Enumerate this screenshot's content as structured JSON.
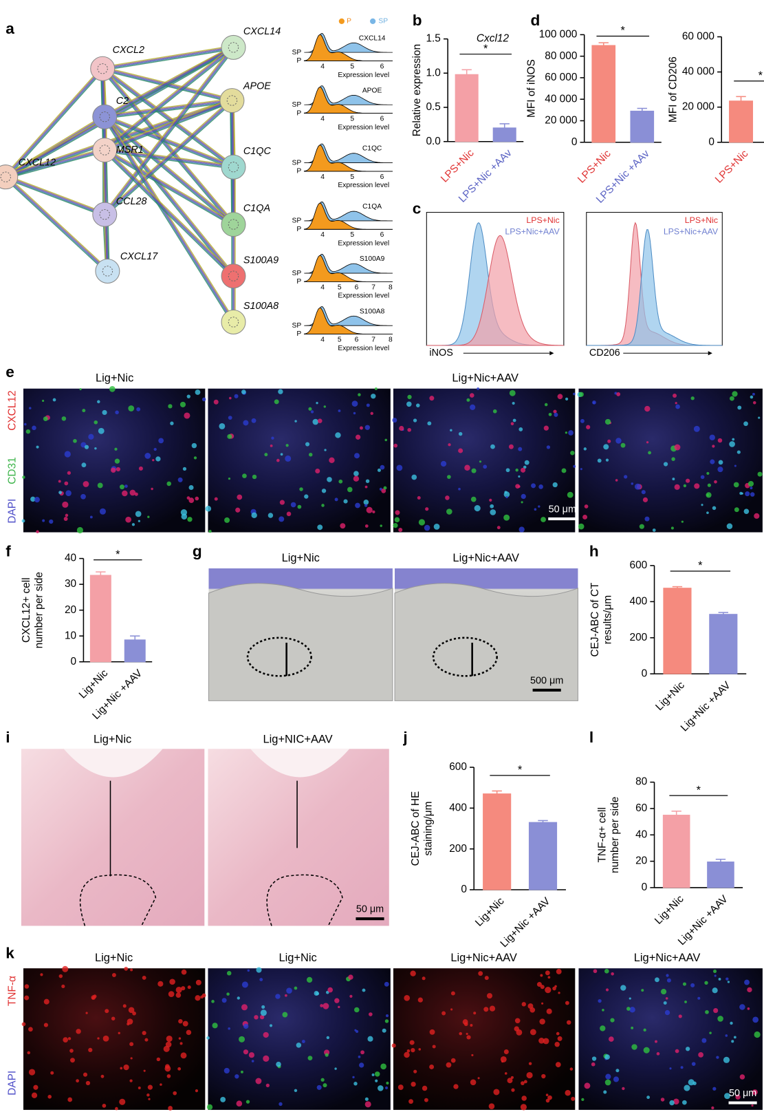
{
  "panel_labels": [
    "a",
    "b",
    "c",
    "d",
    "e",
    "f",
    "g",
    "h",
    "i",
    "j",
    "k",
    "l"
  ],
  "network": {
    "nodes": [
      {
        "label": "CXCL14",
        "color": "#cde8c8"
      },
      {
        "label": "CXCL2",
        "color": "#f2c4c8"
      },
      {
        "label": "APOE",
        "color": "#e3dc9c"
      },
      {
        "label": "C2",
        "color": "#8c93d6"
      },
      {
        "label": "MSR1",
        "color": "#f3d2c8"
      },
      {
        "label": "C1QC",
        "color": "#9fd8cf"
      },
      {
        "label": "CXCL12",
        "color": "#f3cfbe"
      },
      {
        "label": "CCL28",
        "color": "#c8bfe6"
      },
      {
        "label": "C1QA",
        "color": "#9fd49a"
      },
      {
        "label": "CXCL17",
        "color": "#c8e1f2"
      },
      {
        "label": "S100A9",
        "color": "#ee7070"
      },
      {
        "label": "S100A8",
        "color": "#e8eca8"
      }
    ]
  },
  "density": {
    "legend": [
      "P",
      "SP"
    ],
    "row_labels": [
      "SP",
      "P"
    ],
    "axis_label": "Expression level",
    "plots": [
      {
        "gene": "CXCL14",
        "ticks": [
          "4",
          "5",
          "6"
        ]
      },
      {
        "gene": "APOE",
        "ticks": [
          "4",
          "5",
          "6"
        ]
      },
      {
        "gene": "C1QC",
        "ticks": [
          "4",
          "5",
          "6"
        ]
      },
      {
        "gene": "C1QA",
        "ticks": [
          "4",
          "5",
          "6"
        ]
      },
      {
        "gene": "S100A9",
        "ticks": [
          "4",
          "5",
          "6",
          "7",
          "8"
        ]
      },
      {
        "gene": "S100A8",
        "ticks": [
          "4",
          "5",
          "6",
          "7",
          "8"
        ]
      }
    ]
  },
  "flow": {
    "legend": [
      "LPS+Nic",
      "LPS+Nic+AAV"
    ],
    "plots": [
      {
        "axis": "iNOS"
      },
      {
        "axis": "CD206"
      }
    ]
  },
  "images": {
    "e": {
      "titles": [
        "Lig+Nic",
        "Lig+Nic+AAV"
      ],
      "channels": [
        "CXCL12",
        "CD31",
        "DAPI"
      ],
      "scale": "50 μm"
    },
    "g": {
      "titles": [
        "Lig+Nic",
        "Lig+Nic+AAV"
      ],
      "scale": "500 μm"
    },
    "i": {
      "titles": [
        "Lig+Nic",
        "Lig+NIC+AAV"
      ],
      "scale": "50 μm"
    },
    "k": {
      "titles": [
        "Lig+Nic",
        "Lig+Nic",
        "Lig+Nic+AAV",
        "Lig+Nic+AAV"
      ],
      "channels": [
        "TNF-α",
        "DAPI"
      ],
      "scale": "50 μm"
    }
  },
  "chart_data": [
    {
      "type": "bar",
      "title": "Cxcl12",
      "ylabel": [
        "Relative expression"
      ],
      "categories": [
        "LPS+Nic",
        "LPS+Nic +AAv"
      ],
      "values": [
        0.98,
        0.2
      ],
      "errors": [
        0.07,
        0.06
      ],
      "colors": [
        "#f4a0a6",
        "#8a8fd6"
      ],
      "category_colors": [
        "#e03535",
        "#5b63c4"
      ],
      "ylim": [
        0,
        1.5
      ],
      "yticks": [
        {
          "value": 0,
          "label": "0.0"
        },
        0.5,
        {
          "value": 1,
          "label": "1.0"
        },
        1.5
      ],
      "significance": "*"
    },
    {
      "type": "bar",
      "ylabel": [
        "MFI of iNOS"
      ],
      "categories": [
        "LPS+Nic",
        "LPS+Nic +AAv"
      ],
      "values": [
        90000,
        29000
      ],
      "errors": [
        2500,
        2500
      ],
      "colors": [
        "#f58a7e",
        "#8a8fd6"
      ],
      "category_colors": [
        "#e03535",
        "#5b63c4"
      ],
      "ylim": [
        0,
        100000
      ],
      "yticks": [
        0,
        {
          "value": 20000,
          "label": "20 000"
        },
        {
          "value": 40000,
          "label": "40 000"
        },
        {
          "value": 60000,
          "label": "60 000"
        },
        {
          "value": 80000,
          "label": "80 000"
        },
        {
          "value": 100000,
          "label": "100 000"
        }
      ],
      "significance": "*"
    },
    {
      "type": "bar",
      "ylabel": [
        "MFI of CD206"
      ],
      "categories": [
        "LPS+Nic"
      ],
      "values": [
        23500
      ],
      "errors": [
        2500
      ],
      "colors": [
        "#f58a7e"
      ],
      "category_colors": [
        "#e03535"
      ],
      "ylim": [
        0,
        60000
      ],
      "yticks": [
        0,
        {
          "value": 20000,
          "label": "20 000"
        },
        {
          "value": 40000,
          "label": "40 000"
        },
        {
          "value": 60000,
          "label": "60 000"
        }
      ],
      "significance": "*"
    },
    {
      "type": "bar",
      "ylabel": [
        "CXCL12+ cell",
        "number per side"
      ],
      "categories": [
        "Lig+Nic",
        "Lig+Nic +AAV"
      ],
      "values": [
        33.5,
        8.5
      ],
      "errors": [
        1.3,
        1.5
      ],
      "colors": [
        "#f4a0a6",
        "#8a8fd6"
      ],
      "ylim": [
        0,
        40
      ],
      "yticks": [
        0,
        10,
        20,
        30,
        40
      ],
      "significance": "*"
    },
    {
      "type": "bar",
      "ylabel": [
        "CEJ-ABC of CT",
        "results/μm"
      ],
      "categories": [
        "Lig+Nic",
        "Lig+Nic +AAV"
      ],
      "values": [
        475,
        330
      ],
      "errors": [
        8,
        10
      ],
      "colors": [
        "#f58a7e",
        "#8a8fd6"
      ],
      "ylim": [
        0,
        600
      ],
      "yticks": [
        0,
        200,
        400,
        600
      ],
      "significance": "*"
    },
    {
      "type": "bar",
      "ylabel": [
        "CEJ-ABC of HE",
        "staining/μm"
      ],
      "categories": [
        "Lig+Nic",
        "Lig+Nic +AAV"
      ],
      "values": [
        470,
        330
      ],
      "errors": [
        14,
        9
      ],
      "colors": [
        "#f58a7e",
        "#8a8fd6"
      ],
      "ylim": [
        0,
        600
      ],
      "yticks": [
        0,
        200,
        400,
        600
      ],
      "significance": "*"
    },
    {
      "type": "bar",
      "ylabel": [
        "TNF-α+ cell",
        "number per side"
      ],
      "categories": [
        "Lig+Nic",
        "Lig+Nic +AAV"
      ],
      "values": [
        55,
        19.5
      ],
      "errors": [
        3,
        2
      ],
      "colors": [
        "#f4a0a6",
        "#8a8fd6"
      ],
      "ylim": [
        0,
        80
      ],
      "yticks": [
        0,
        20,
        40,
        60,
        80
      ],
      "significance": "*"
    }
  ]
}
